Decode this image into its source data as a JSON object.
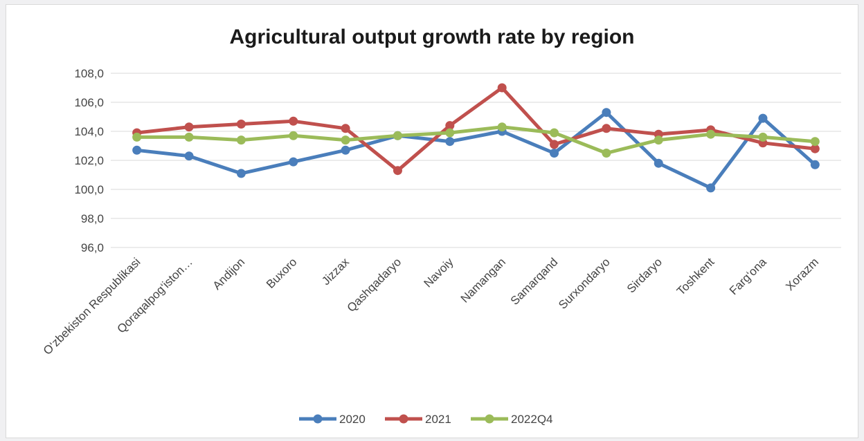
{
  "chart_data": {
    "type": "line",
    "title": "Agricultural output growth rate by region",
    "xlabel": "",
    "ylabel": "",
    "ylim": [
      96.0,
      108.0
    ],
    "yticks": [
      "108,0",
      "106,0",
      "104,0",
      "102,0",
      "100,0",
      "98,0",
      "96,0"
    ],
    "grid": true,
    "legend": "bottom",
    "categories": [
      "O‘zbekiston Respublikasi",
      "Qoraqalpog‘iston…",
      "Andijon",
      "Buxoro",
      "Jizzax",
      "Qashqadaryo",
      "Navoiy",
      "Namangan",
      "Samarqand",
      "Surxondaryo",
      "Sirdaryo",
      "Toshkent",
      "Farg‘ona",
      "Xorazm"
    ],
    "series": [
      {
        "name": "2020",
        "color": "#4a7ebb",
        "values": [
          102.7,
          102.3,
          101.1,
          101.9,
          102.7,
          103.7,
          103.3,
          104.0,
          102.5,
          105.3,
          101.8,
          100.1,
          104.9,
          101.7
        ]
      },
      {
        "name": "2021",
        "color": "#c0504d",
        "values": [
          103.9,
          104.3,
          104.5,
          104.7,
          104.2,
          101.3,
          104.4,
          107.0,
          103.1,
          104.2,
          103.8,
          104.1,
          103.2,
          102.8
        ]
      },
      {
        "name": "2022Q4",
        "color": "#9bbb59",
        "values": [
          103.6,
          103.6,
          103.4,
          103.7,
          103.4,
          103.7,
          103.9,
          104.3,
          103.9,
          102.5,
          103.4,
          103.8,
          103.6,
          103.3
        ]
      }
    ]
  }
}
